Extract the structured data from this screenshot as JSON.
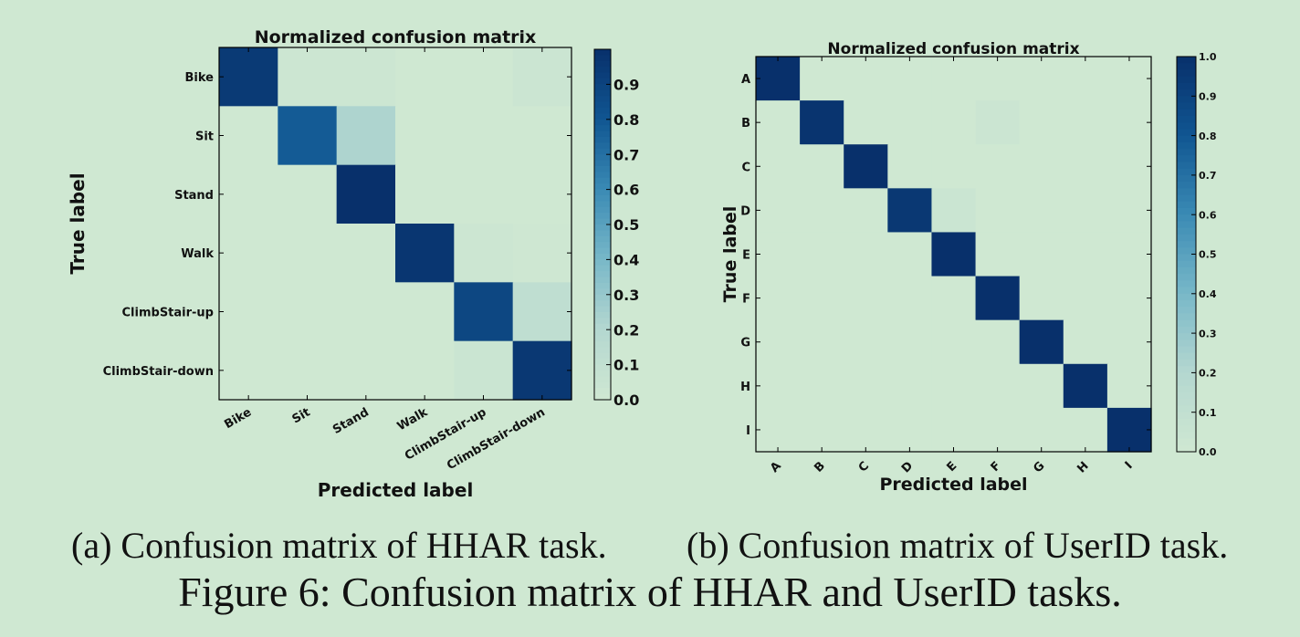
{
  "chart_data": [
    {
      "type": "heatmap",
      "title": "Normalized confusion matrix",
      "xlabel": "Predicted label",
      "ylabel": "True label",
      "categories": [
        "Bike",
        "Sit",
        "Stand",
        "Walk",
        "ClimbStair-up",
        "ClimbStair-down"
      ],
      "matrix": [
        [
          0.95,
          0.02,
          0.02,
          0.0,
          0.0,
          0.03
        ],
        [
          0.0,
          0.78,
          0.22,
          0.0,
          0.0,
          0.0
        ],
        [
          0.0,
          0.0,
          1.0,
          0.0,
          0.0,
          0.0
        ],
        [
          0.0,
          0.0,
          0.0,
          0.97,
          0.02,
          0.01
        ],
        [
          0.0,
          0.0,
          0.0,
          0.0,
          0.88,
          0.12
        ],
        [
          0.0,
          0.0,
          0.0,
          0.0,
          0.04,
          0.96
        ]
      ],
      "colorbar_ticks": [
        "0.0",
        "0.1",
        "0.2",
        "0.3",
        "0.4",
        "0.5",
        "0.6",
        "0.7",
        "0.8",
        "0.9"
      ],
      "colorbar_range": [
        0,
        1.0
      ],
      "colormap": "Blues"
    },
    {
      "type": "heatmap",
      "title": "Normalized confusion matrix",
      "xlabel": "Predicted label",
      "ylabel": "True label",
      "categories": [
        "A",
        "B",
        "C",
        "D",
        "E",
        "F",
        "G",
        "H",
        "I"
      ],
      "matrix": [
        [
          1.0,
          0.0,
          0.0,
          0.0,
          0.0,
          0.0,
          0.0,
          0.0,
          0.0
        ],
        [
          0.0,
          0.98,
          0.0,
          0.0,
          0.0,
          0.03,
          0.0,
          0.0,
          0.0
        ],
        [
          0.0,
          0.0,
          1.0,
          0.0,
          0.0,
          0.0,
          0.0,
          0.0,
          0.0
        ],
        [
          0.0,
          0.0,
          0.0,
          0.96,
          0.04,
          0.0,
          0.0,
          0.0,
          0.0
        ],
        [
          0.0,
          0.0,
          0.0,
          0.0,
          1.0,
          0.0,
          0.0,
          0.0,
          0.0
        ],
        [
          0.0,
          0.0,
          0.0,
          0.0,
          0.0,
          1.0,
          0.0,
          0.0,
          0.0
        ],
        [
          0.0,
          0.0,
          0.0,
          0.0,
          0.0,
          0.0,
          1.0,
          0.0,
          0.0
        ],
        [
          0.0,
          0.0,
          0.0,
          0.0,
          0.0,
          0.0,
          0.0,
          1.0,
          0.0
        ],
        [
          0.0,
          0.0,
          0.0,
          0.0,
          0.0,
          0.0,
          0.0,
          0.0,
          1.0
        ]
      ],
      "colorbar_ticks": [
        "0.0",
        "0.1",
        "0.2",
        "0.3",
        "0.4",
        "0.5",
        "0.6",
        "0.7",
        "0.8",
        "0.9",
        "1.0"
      ],
      "colorbar_range": [
        0,
        1.0
      ],
      "colormap": "Blues"
    }
  ],
  "captions": {
    "a": "(a) Confusion matrix of HHAR task.",
    "b": "(b) Confusion matrix of UserID task.",
    "figure": "Figure 6: Confusion matrix of HHAR and UserID tasks."
  },
  "colors": {
    "background": "#cfe8d2",
    "low": "#cfe8d2",
    "high": "#08306b"
  }
}
